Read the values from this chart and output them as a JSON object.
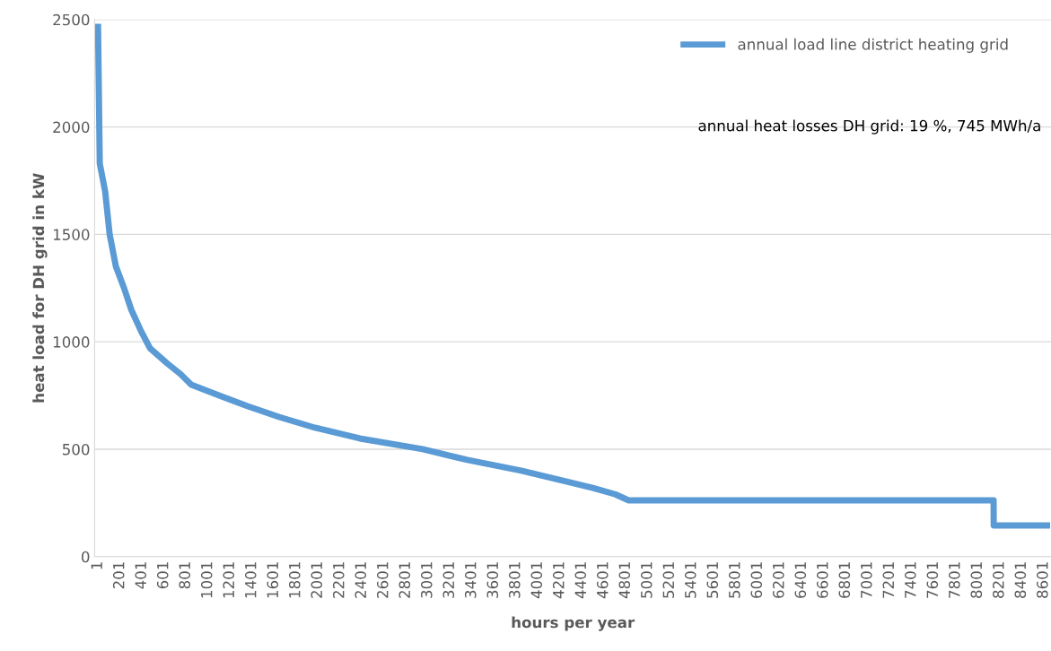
{
  "chart_data": {
    "type": "line",
    "xlabel": "hours per year",
    "ylabel": "heat load for DH grid in kW",
    "series": [
      {
        "name": "annual load line district heating grid",
        "color": "#5b9bd5",
        "x": [
          1,
          17,
          66,
          107,
          164,
          238,
          303,
          392,
          474,
          629,
          751,
          849,
          1102,
          1362,
          1648,
          1974,
          2382,
          2953,
          3360,
          3850,
          4257,
          4501,
          4705,
          4827,
          8146,
          8147,
          8660
        ],
        "values": [
          2480,
          1830,
          1700,
          1500,
          1350,
          1250,
          1150,
          1050,
          970,
          900,
          850,
          800,
          750,
          700,
          650,
          600,
          550,
          500,
          450,
          400,
          350,
          320,
          290,
          262,
          262,
          145,
          145
        ]
      }
    ],
    "xlim": [
      -30,
      8668
    ],
    "xticks": [
      1,
      201,
      401,
      601,
      801,
      1001,
      1201,
      1401,
      1601,
      1801,
      2001,
      2201,
      2401,
      2601,
      2801,
      3001,
      3201,
      3401,
      3601,
      3801,
      4001,
      4201,
      4401,
      4601,
      4801,
      5001,
      5201,
      5401,
      5601,
      5801,
      6001,
      6201,
      6401,
      6601,
      6801,
      7001,
      7201,
      7401,
      7601,
      7801,
      8001,
      8201,
      8401,
      8601
    ],
    "ylim": [
      0,
      2500
    ],
    "yticks": [
      0,
      500,
      1000,
      1500,
      2000,
      2500
    ],
    "grid": "y",
    "legend": "top right",
    "marker": "none",
    "line_style": "solid",
    "annotations": [
      {
        "text": "annual heat losses DH grid: 19 %, 745 MWh/a"
      }
    ]
  }
}
